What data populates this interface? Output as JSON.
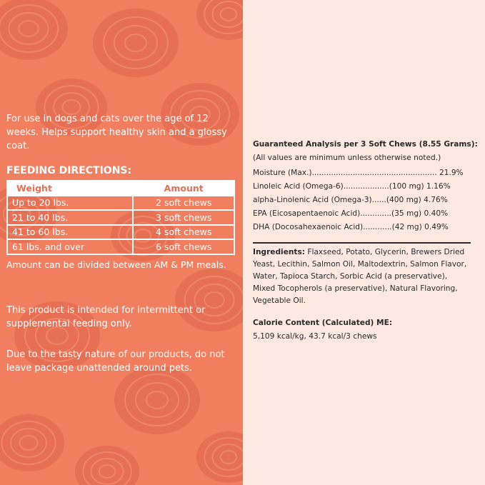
{
  "colors": {
    "left_panel": "#f07e5f",
    "pattern": "#e26a4e",
    "right_panel": "#fde9e1",
    "text_dark": "#2a2a2a"
  },
  "left": {
    "intro": "For use in dogs and cats over the age of 12 weeks. Helps support healthy skin and a glossy coat.",
    "feeding_title": "FEEDING DIRECTIONS:",
    "table": {
      "headers": [
        "Weight",
        "Amount"
      ],
      "rows": [
        [
          "Up to 20 lbs.",
          "2 soft chews"
        ],
        [
          "21 to 40 lbs.",
          "3 soft chews"
        ],
        [
          "41 to 60 lbs.",
          "4 soft chews"
        ],
        [
          "61 lbs. and over",
          "6 soft chews"
        ]
      ]
    },
    "note": "Amount can be divided between AM & PM meals.",
    "p1": "This product is intended for intermittent or supplemental feeding only.",
    "p2": "Due to the tasty nature of our products, do not leave package unattended around pets."
  },
  "right": {
    "ga_title": "Guaranteed Analysis per 3 Soft Chews (8.55 Grams):",
    "ga_note": "(All values are minimum unless otherwise noted.)",
    "ga_rows": [
      "Moisture (Max.)....................................................  21.9%",
      "Linoleic Acid (Omega-6)...................(100 mg) 1.16%",
      "alpha-Linolenic Acid (Omega-3)......(400 mg) 4.76%",
      "EPA (Eicosapentaenoic Acid).............(35 mg) 0.40%",
      "DHA (Docosahexaenoic Acid)............(42 mg) 0.49%"
    ],
    "ingredients_label": "Ingredients:",
    "ingredients": " Flaxseed, Potato, Glycerin, Brewers Dried Yeast, Lecithin, Salmon Oil, Maltodextrin, Salmon Flavor, Water, Tapioca Starch, Sorbic Acid (a preservative), Mixed Tocopherols (a preservative), Natural Flavoring, Vegetable Oil.",
    "calorie_title": "Calorie Content (Calculated) ME:",
    "calorie": "5,109 kcal/kg, 43.7 kcal/3 chews"
  }
}
